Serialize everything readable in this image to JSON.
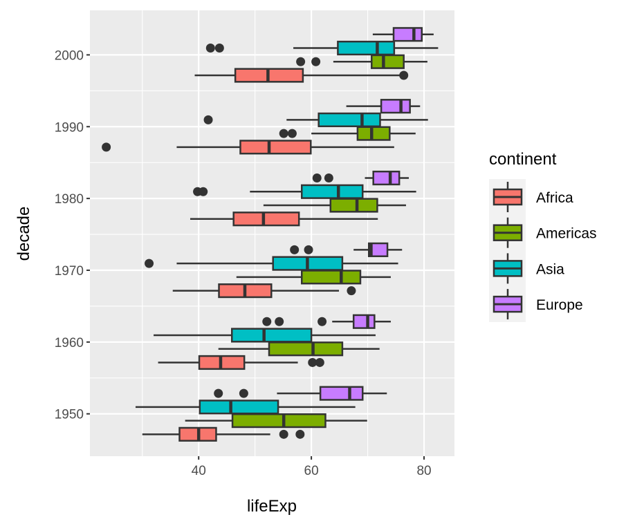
{
  "chart_data": {
    "type": "boxplot",
    "title": "",
    "xlabel": "lifeExp",
    "ylabel": "decade",
    "xlim": [
      20.7,
      85.4
    ],
    "ylim": [
      1944.1,
      2006.2
    ],
    "x_ticks": [
      40,
      60,
      80
    ],
    "x_tick_labels": [
      "40",
      "60",
      "80"
    ],
    "y_ticks": [
      1950,
      1960,
      1970,
      1980,
      1990,
      2000
    ],
    "y_tick_labels": [
      "1950",
      "1960",
      "1970",
      "1980",
      "1990",
      "2000"
    ],
    "grid": true,
    "legend": {
      "title": "continent",
      "placement": "right",
      "entries": [
        "Africa",
        "Americas",
        "Asia",
        "Europe"
      ]
    },
    "series": [
      {
        "name": "Africa",
        "color": "#F8766D",
        "boxes": [
          {
            "decade": 1950,
            "min": 30.0,
            "q1": 36.6,
            "median": 40.0,
            "q3": 43.1,
            "max": 52.7,
            "outliers": [
              55.1,
              58.0
            ]
          },
          {
            "decade": 1960,
            "min": 32.8,
            "q1": 40.1,
            "median": 43.9,
            "q3": 48.1,
            "max": 57.6,
            "outliers": [
              60.2,
              61.5
            ]
          },
          {
            "decade": 1970,
            "min": 35.4,
            "q1": 43.6,
            "median": 48.2,
            "q3": 52.9,
            "max": 64.9,
            "outliers": [
              67.1
            ]
          },
          {
            "decade": 1980,
            "min": 38.5,
            "q1": 46.2,
            "median": 51.5,
            "q3": 57.8,
            "max": 71.8,
            "outliers": []
          },
          {
            "decade": 1990,
            "min": 36.1,
            "q1": 47.4,
            "median": 52.5,
            "q3": 59.9,
            "max": 74.7,
            "outliers": [
              23.6
            ]
          },
          {
            "decade": 2000,
            "min": 39.3,
            "q1": 46.5,
            "median": 52.3,
            "q3": 58.5,
            "max": 75.8,
            "outliers": [
              76.4
            ]
          }
        ]
      },
      {
        "name": "Americas",
        "color": "#7CAE00",
        "boxes": [
          {
            "decade": 1950,
            "min": 37.6,
            "q1": 46.0,
            "median": 55.1,
            "q3": 62.5,
            "max": 69.9,
            "outliers": []
          },
          {
            "decade": 1960,
            "min": 43.5,
            "q1": 52.5,
            "median": 60.3,
            "q3": 65.5,
            "max": 72.1,
            "outliers": []
          },
          {
            "decade": 1970,
            "min": 46.7,
            "q1": 58.3,
            "median": 65.3,
            "q3": 68.7,
            "max": 74.1,
            "outliers": []
          },
          {
            "decade": 1980,
            "min": 51.5,
            "q1": 63.4,
            "median": 68.1,
            "q3": 71.7,
            "max": 76.8,
            "outliers": []
          },
          {
            "decade": 1990,
            "min": 60.0,
            "q1": 68.2,
            "median": 70.7,
            "q3": 73.9,
            "max": 78.5,
            "outliers": [
              55.1,
              56.6
            ]
          },
          {
            "decade": 2000,
            "min": 63.9,
            "q1": 70.7,
            "median": 72.8,
            "q3": 76.4,
            "max": 80.6,
            "outliers": [
              58.1,
              60.8
            ]
          }
        ]
      },
      {
        "name": "Asia",
        "color": "#00BFC4",
        "boxes": [
          {
            "decade": 1950,
            "min": 28.8,
            "q1": 40.2,
            "median": 45.7,
            "q3": 54.1,
            "max": 67.8,
            "outliers": []
          },
          {
            "decade": 1960,
            "min": 32.0,
            "q1": 45.9,
            "median": 51.6,
            "q3": 60.0,
            "max": 71.4,
            "outliers": []
          },
          {
            "decade": 1970,
            "min": 36.1,
            "q1": 53.2,
            "median": 59.3,
            "q3": 65.5,
            "max": 75.4,
            "outliers": [
              31.2
            ]
          },
          {
            "decade": 1980,
            "min": 49.1,
            "q1": 58.3,
            "median": 64.8,
            "q3": 69.1,
            "max": 78.6,
            "outliers": [
              39.8,
              40.8
            ]
          },
          {
            "decade": 1990,
            "min": 55.6,
            "q1": 61.3,
            "median": 69.0,
            "q3": 72.2,
            "max": 80.7,
            "outliers": [
              41.7
            ]
          },
          {
            "decade": 2000,
            "min": 56.8,
            "q1": 64.7,
            "median": 71.7,
            "q3": 74.7,
            "max": 82.5,
            "outliers": [
              42.1,
              43.7
            ]
          }
        ]
      },
      {
        "name": "Europe",
        "color": "#C77CFF",
        "boxes": [
          {
            "decade": 1950,
            "min": 53.9,
            "q1": 61.6,
            "median": 66.8,
            "q3": 69.1,
            "max": 73.4,
            "outliers": [
              43.5,
              48.0
            ]
          },
          {
            "decade": 1960,
            "min": 63.7,
            "q1": 67.5,
            "median": 70.0,
            "q3": 71.2,
            "max": 74.1,
            "outliers": [
              52.1,
              54.3,
              61.9
            ]
          },
          {
            "decade": 1970,
            "min": 67.5,
            "q1": 70.2,
            "median": 70.6,
            "q3": 73.5,
            "max": 76.1,
            "outliers": [
              57.0,
              59.5
            ]
          },
          {
            "decade": 1980,
            "min": 69.5,
            "q1": 71.0,
            "median": 74.0,
            "q3": 75.6,
            "max": 77.3,
            "outliers": [
              61.0,
              63.1
            ]
          },
          {
            "decade": 1990,
            "min": 66.2,
            "q1": 72.4,
            "median": 75.9,
            "q3": 77.5,
            "max": 79.3,
            "outliers": []
          },
          {
            "decade": 2000,
            "min": 70.9,
            "q1": 74.6,
            "median": 78.2,
            "q3": 79.6,
            "max": 81.7,
            "outliers": []
          }
        ]
      }
    ]
  }
}
